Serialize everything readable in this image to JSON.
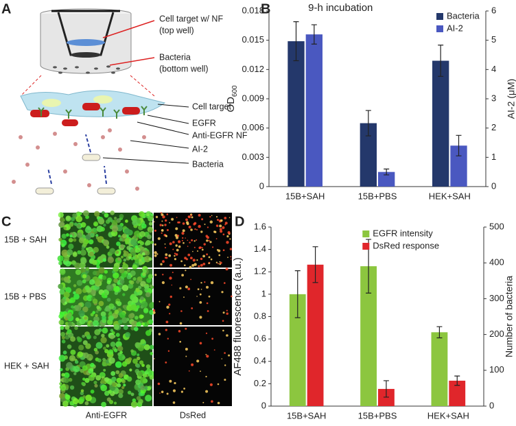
{
  "panels": {
    "A": {
      "letter": "A",
      "labels": [
        "Cell target w/ NF",
        "(top well)",
        "Bacteria",
        "(bottom well)",
        "Cell target",
        "EGFR",
        "Anti-EGFR NF",
        "AI-2",
        "Bacteria"
      ]
    },
    "C": {
      "letter": "C",
      "rows": [
        "15B + SAH",
        "15B + PBS",
        "HEK + SAH"
      ],
      "columns": [
        "Anti-EGFR",
        "DsRed"
      ]
    }
  },
  "chart_data": [
    {
      "type": "bar",
      "panel": "B",
      "title": "9-h incubation",
      "ylabel": "OD",
      "ylabel_sub": "600",
      "y2label": "AI-2 (μM)",
      "categories": [
        "15B+SAH",
        "15B+PBS",
        "HEK+SAH"
      ],
      "series": [
        {
          "name": "Bacteria",
          "color": "#24386b",
          "values": [
            0.0149,
            0.0065,
            0.0129
          ],
          "errors": [
            0.002,
            0.0013,
            0.0016
          ]
        },
        {
          "name": "AI-2",
          "color": "#4a58c0",
          "axis": "y2",
          "values": [
            5.2,
            0.5,
            1.4
          ],
          "errors": [
            0.33,
            0.1,
            0.35
          ]
        }
      ],
      "ylim": [
        0,
        0.018
      ],
      "yticks": [
        0,
        0.003,
        0.006,
        0.009,
        0.012,
        0.015,
        0.018
      ],
      "y2lim": [
        0,
        6
      ],
      "y2ticks": [
        0,
        1,
        2,
        3,
        4,
        5,
        6
      ],
      "legend": "upper-right"
    },
    {
      "type": "bar",
      "panel": "D",
      "ylabel": "AF488 fluorescence (a.u.)",
      "y2label": "Number of bacteria",
      "categories": [
        "15B+SAH",
        "15B+PBS",
        "HEK+SAH"
      ],
      "series": [
        {
          "name": "EGFR intensity",
          "color": "#8cc63f",
          "values": [
            1.0,
            1.25,
            0.66
          ],
          "errors": [
            0.21,
            0.24,
            0.05
          ]
        },
        {
          "name": "DsRed response",
          "color": "#e0262b",
          "axis": "y2",
          "values": [
            395,
            48,
            71
          ],
          "errors": [
            50,
            23,
            13
          ]
        }
      ],
      "ylim": [
        0,
        1.6
      ],
      "yticks": [
        0,
        0.2,
        0.4,
        0.6,
        0.8,
        1,
        1.2,
        1.4,
        1.6
      ],
      "y2lim": [
        0,
        500
      ],
      "y2ticks": [
        0,
        100,
        200,
        300,
        400,
        500
      ],
      "legend": "upper-middle"
    }
  ]
}
